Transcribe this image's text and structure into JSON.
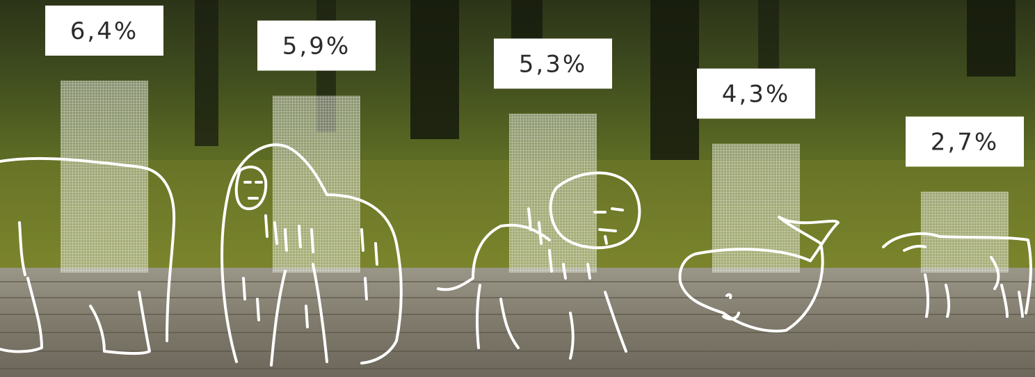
{
  "chart_data": {
    "type": "bar",
    "categories": [
      "polar-bear",
      "gorilla",
      "lion",
      "whale",
      "cow"
    ],
    "values": [
      6.4,
      5.9,
      5.3,
      4.3,
      2.7
    ],
    "data_labels": [
      "6,4%",
      "5,9%",
      "5,3%",
      "4,3%",
      "2,7%"
    ],
    "title": "",
    "xlabel": "",
    "ylabel": "",
    "ylim": [
      0,
      6.4
    ],
    "grid": false,
    "legend": "none"
  },
  "icons": [
    "polar-bear-icon",
    "gorilla-icon",
    "lion-icon",
    "whale-icon",
    "cow-icon"
  ],
  "colors": {
    "label_box": "#ffffff",
    "label_text": "#2b2b2b",
    "bar_fill": "#d9dccf",
    "outline": "#ffffff"
  }
}
